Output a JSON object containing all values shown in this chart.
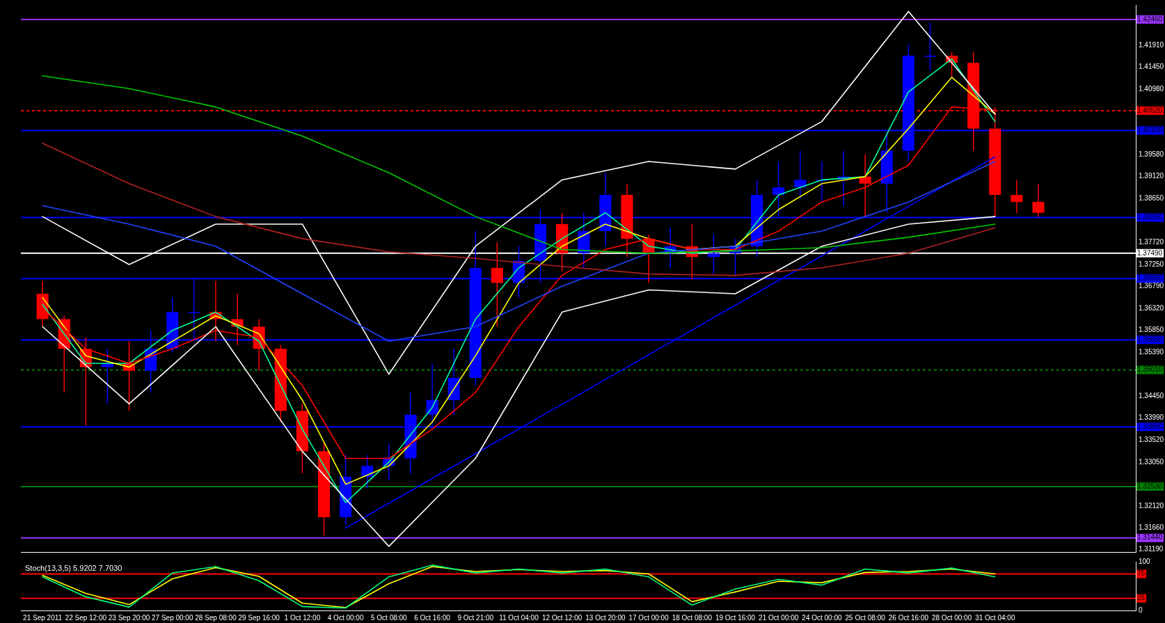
{
  "chart_data": [
    {
      "type": "candlestick",
      "tick_labels": "y",
      "ylim": [
        1.3114,
        1.4277
      ],
      "categories": [
        "21 Sep 2011",
        null,
        "22 Sep 12:00",
        null,
        "23 Sep 20:00",
        null,
        "27 Sep 00:00",
        null,
        "28 Sep 08:00",
        null,
        "29 Sep 16:00",
        null,
        "1 Oct 12:00",
        null,
        "4 Oct 00:00",
        null,
        "5 Oct 08:00",
        null,
        "6 Oct 16:00",
        null,
        "9 Oct 21:00",
        null,
        "11 Oct 04:00",
        null,
        "12 Oct 12:00",
        null,
        "13 Oct 20:00",
        null,
        "17 Oct 00:00",
        null,
        "18 Oct 08:00",
        null,
        "19 Oct 16:00",
        null,
        "21 Oct 00:00",
        null,
        "24 Oct 00:00",
        null,
        "25 Oct 08:00",
        null,
        "26 Oct 16:00",
        null,
        "28 Oct 00:00",
        null,
        "31 Oct 04:00",
        null,
        null,
        null,
        null,
        null,
        null
      ],
      "yticks": [
        {
          "value": 1.4191,
          "label": "1.41910"
        },
        {
          "value": 1.4145,
          "label": "1.41450"
        },
        {
          "value": 1.4098,
          "label": "1.40980"
        },
        {
          "value": 1.3958,
          "label": "1.39580"
        },
        {
          "value": 1.3912,
          "label": "1.39120"
        },
        {
          "value": 1.3865,
          "label": "1.38650"
        },
        {
          "value": 1.3772,
          "label": "1.37720"
        },
        {
          "value": 1.3725,
          "label": "1.37250"
        },
        {
          "value": 1.3679,
          "label": "1.36790"
        },
        {
          "value": 1.3632,
          "label": "1.36320"
        },
        {
          "value": 1.3585,
          "label": "1.35850"
        },
        {
          "value": 1.3539,
          "label": "1.35390"
        },
        {
          "value": 1.3445,
          "label": "1.34450"
        },
        {
          "value": 1.3399,
          "label": "1.33990"
        },
        {
          "value": 1.3352,
          "label": "1.33520"
        },
        {
          "value": 1.3305,
          "label": "1.33050"
        },
        {
          "value": 1.3212,
          "label": "1.32120"
        },
        {
          "value": 1.3166,
          "label": "1.31660"
        },
        {
          "value": 1.3119,
          "label": "1.31190"
        }
      ],
      "ohlc": [
        [
          1.3663,
          1.369,
          1.3593,
          1.3609
        ],
        [
          1.3609,
          1.3616,
          1.3453,
          1.3546
        ],
        [
          1.3546,
          1.357,
          1.3383,
          1.3507
        ],
        [
          1.3507,
          1.3546,
          1.3429,
          1.3515
        ],
        [
          1.3515,
          1.3562,
          1.3414,
          1.3499
        ],
        [
          1.3499,
          1.3585,
          1.3453,
          1.3546
        ],
        [
          1.3546,
          1.3655,
          1.3538,
          1.3624
        ],
        [
          1.3624,
          1.3694,
          1.3562,
          1.3624
        ],
        [
          1.3624,
          1.369,
          1.3562,
          1.3609
        ],
        [
          1.3609,
          1.3663,
          1.3554,
          1.3593
        ],
        [
          1.3593,
          1.3609,
          1.3499,
          1.3546
        ],
        [
          1.3546,
          1.3554,
          1.339,
          1.3414
        ],
        [
          1.3414,
          1.3429,
          1.3281,
          1.3328
        ],
        [
          1.3328,
          1.3344,
          1.3149,
          1.3188
        ],
        [
          1.3188,
          1.332,
          1.3172,
          1.3274
        ],
        [
          1.3274,
          1.332,
          1.325,
          1.3297
        ],
        [
          1.3297,
          1.3344,
          1.3266,
          1.3313
        ],
        [
          1.3313,
          1.3453,
          1.3281,
          1.3406
        ],
        [
          1.3406,
          1.3515,
          1.3375,
          1.3437
        ],
        [
          1.3437,
          1.3546,
          1.3406,
          1.3484
        ],
        [
          1.3484,
          1.3796,
          1.3468,
          1.3718
        ],
        [
          1.3718,
          1.3772,
          1.3593,
          1.3686
        ],
        [
          1.3686,
          1.3764,
          1.3655,
          1.3733
        ],
        [
          1.3733,
          1.3842,
          1.3686,
          1.3811
        ],
        [
          1.3811,
          1.3835,
          1.371,
          1.3749
        ],
        [
          1.3749,
          1.3835,
          1.3718,
          1.3796
        ],
        [
          1.3796,
          1.392,
          1.3764,
          1.3873
        ],
        [
          1.3873,
          1.3897,
          1.3741,
          1.378
        ],
        [
          1.378,
          1.3788,
          1.3686,
          1.3749
        ],
        [
          1.3749,
          1.3803,
          1.3718,
          1.3764
        ],
        [
          1.3764,
          1.3811,
          1.3694,
          1.3741
        ],
        [
          1.3741,
          1.3788,
          1.3702,
          1.3749
        ],
        [
          1.3749,
          1.378,
          1.3702,
          1.3764
        ],
        [
          1.3764,
          1.3905,
          1.3741,
          1.3873
        ],
        [
          1.3873,
          1.3944,
          1.3827,
          1.3889
        ],
        [
          1.3889,
          1.3967,
          1.3866,
          1.3905
        ],
        [
          1.3905,
          1.3944,
          1.3858,
          1.3905
        ],
        [
          1.3905,
          1.3967,
          1.385,
          1.3912
        ],
        [
          1.3912,
          1.3959,
          1.3827,
          1.3897
        ],
        [
          1.3897,
          1.4006,
          1.3835,
          1.3967
        ],
        [
          1.3967,
          1.4193,
          1.3944,
          1.4169
        ],
        [
          1.4169,
          1.424,
          1.4138,
          1.4169
        ],
        [
          1.4169,
          1.4177,
          1.4123,
          1.4154
        ],
        [
          1.4154,
          1.4177,
          1.3967,
          1.4014
        ],
        [
          1.4014,
          1.406,
          1.3827,
          1.3873
        ],
        [
          1.3873,
          1.3905,
          1.3835,
          1.3858
        ],
        [
          1.3858,
          1.3897,
          1.3827,
          1.3835
        ],
        null,
        null,
        null,
        null
      ],
      "colors": [
        "#ff0000",
        "#ff0000",
        "#ff0000",
        "#0000ff",
        "#ff0000",
        "#0000ff",
        "#0000ff",
        "#0000ff",
        "#ff0000",
        "#ff0000",
        "#ff0000",
        "#ff0000",
        "#ff0000",
        "#ff0000",
        "#0000ff",
        "#0000ff",
        "#0000ff",
        "#0000ff",
        "#0000ff",
        "#0000ff",
        "#0000ff",
        "#ff0000",
        "#0000ff",
        "#0000ff",
        "#ff0000",
        "#0000ff",
        "#0000ff",
        "#ff0000",
        "#ff0000",
        "#0000ff",
        "#ff0000",
        "#0000ff",
        "#0000ff",
        "#0000ff",
        "#0000ff",
        "#0000ff",
        "#0000ff",
        "#0000ff",
        "#ff0000",
        "#0000ff",
        "#0000ff",
        "#0000ff",
        "#ff0000",
        "#ff0000",
        "#ff0000",
        "#ff0000",
        "#ff0000",
        null,
        null,
        null,
        null
      ],
      "series": [
        {
          "type": "line",
          "color": "#00cc00",
          "x": [
            "21 Sep 2011",
            "23 Sep 20:00",
            "28 Sep 08:00",
            "1 Oct 12:00",
            "5 Oct 08:00",
            "9 Oct 21:00",
            "12 Oct 12:00",
            "17 Oct 00:00",
            "19 Oct 16:00",
            "24 Oct 00:00",
            "26 Oct 16:00",
            "31 Oct 04:00"
          ],
          "values": [
            1.4126,
            1.4099,
            1.406,
            1.3998,
            1.392,
            1.3827,
            1.3757,
            1.3749,
            1.3754,
            1.3761,
            1.3783,
            1.3811
          ]
        },
        {
          "type": "line",
          "color": "#b22222",
          "x": [
            "21 Sep 2011",
            "23 Sep 20:00",
            "28 Sep 08:00",
            "1 Oct 12:00",
            "5 Oct 08:00",
            "9 Oct 21:00",
            "12 Oct 12:00",
            "17 Oct 00:00",
            "19 Oct 16:00",
            "24 Oct 00:00",
            "26 Oct 16:00",
            "31 Oct 04:00"
          ],
          "values": [
            1.3983,
            1.3897,
            1.3827,
            1.378,
            1.3752,
            1.3738,
            1.3721,
            1.3705,
            1.3702,
            1.3718,
            1.3749,
            1.3803
          ]
        },
        {
          "type": "line",
          "color": "#2244ff",
          "x": [
            "21 Sep 2011",
            "23 Sep 20:00",
            "28 Sep 08:00",
            "1 Oct 12:00",
            "5 Oct 08:00",
            "9 Oct 21:00",
            "12 Oct 12:00",
            "17 Oct 00:00",
            "19 Oct 16:00",
            "24 Oct 00:00",
            "26 Oct 16:00",
            "31 Oct 04:00"
          ],
          "values": [
            1.385,
            1.3811,
            1.3764,
            1.3663,
            1.3562,
            1.3593,
            1.3679,
            1.3749,
            1.3764,
            1.3796,
            1.3858,
            1.3944
          ]
        },
        {
          "type": "line",
          "color": "#ffffff",
          "x": [
            "21 Sep 2011",
            "23 Sep 20:00",
            "28 Sep 08:00",
            "1 Oct 12:00",
            "5 Oct 08:00",
            "9 Oct 21:00",
            "12 Oct 12:00",
            "17 Oct 00:00",
            "19 Oct 16:00",
            "24 Oct 00:00",
            "26 Oct 16:00",
            "31 Oct 04:00"
          ],
          "values": [
            1.3827,
            1.3725,
            1.3811,
            1.3811,
            1.3492,
            1.3764,
            1.3905,
            1.3944,
            1.3928,
            1.4029,
            1.4263,
            1.4045
          ]
        },
        {
          "type": "line",
          "color": "#ffffff",
          "x": [
            "21 Sep 2011",
            "23 Sep 20:00",
            "28 Sep 08:00",
            "1 Oct 12:00",
            "5 Oct 08:00",
            "9 Oct 21:00",
            "12 Oct 12:00",
            "17 Oct 00:00",
            "19 Oct 16:00",
            "24 Oct 00:00",
            "26 Oct 16:00",
            "31 Oct 04:00"
          ],
          "values": [
            1.3593,
            1.3429,
            1.3593,
            1.3328,
            1.3126,
            1.3313,
            1.3624,
            1.3671,
            1.3663,
            1.3764,
            1.3811,
            1.3827
          ]
        },
        {
          "type": "line",
          "color": "#ff0000",
          "x": [
            "21 Sep 2011",
            "22 Sep 12:00",
            "23 Sep 20:00",
            "27 Sep 00:00",
            "28 Sep 08:00",
            "29 Sep 16:00",
            "1 Oct 12:00",
            "4 Oct 00:00",
            "5 Oct 08:00",
            "6 Oct 16:00",
            "9 Oct 21:00",
            "11 Oct 04:00",
            "12 Oct 12:00",
            "13 Oct 20:00",
            "17 Oct 00:00",
            "18 Oct 08:00",
            "19 Oct 16:00",
            "21 Oct 00:00",
            "24 Oct 00:00",
            "25 Oct 08:00",
            "26 Oct 16:00",
            "28 Oct 00:00",
            "31 Oct 04:00"
          ],
          "values": [
            1.3632,
            1.3546,
            1.3515,
            1.3546,
            1.3585,
            1.357,
            1.3468,
            1.3313,
            1.3313,
            1.3375,
            1.3453,
            1.3593,
            1.3702,
            1.3757,
            1.378,
            1.3757,
            1.3757,
            1.3796,
            1.3858,
            1.3889,
            1.3936,
            1.406,
            1.4053
          ]
        },
        {
          "type": "line",
          "color": "#ffff00",
          "x": [
            "21 Sep 2011",
            "22 Sep 12:00",
            "23 Sep 20:00",
            "27 Sep 00:00",
            "28 Sep 08:00",
            "29 Sep 16:00",
            "1 Oct 12:00",
            "4 Oct 00:00",
            "5 Oct 08:00",
            "6 Oct 16:00",
            "9 Oct 21:00",
            "11 Oct 04:00",
            "12 Oct 12:00",
            "13 Oct 20:00",
            "17 Oct 00:00",
            "18 Oct 08:00",
            "19 Oct 16:00",
            "21 Oct 00:00",
            "24 Oct 00:00",
            "25 Oct 08:00",
            "26 Oct 16:00",
            "28 Oct 00:00",
            "31 Oct 04:00"
          ],
          "values": [
            1.3655,
            1.3531,
            1.3507,
            1.3562,
            1.3616,
            1.3578,
            1.3437,
            1.3258,
            1.3297,
            1.339,
            1.3531,
            1.3686,
            1.3764,
            1.3811,
            1.378,
            1.3757,
            1.3764,
            1.3842,
            1.3897,
            1.3912,
            1.4014,
            1.4123,
            1.4045
          ]
        },
        {
          "type": "line",
          "color": "#00ff99",
          "x": [
            "21 Sep 2011",
            "22 Sep 12:00",
            "23 Sep 20:00",
            "27 Sep 00:00",
            "28 Sep 08:00",
            "29 Sep 16:00",
            "1 Oct 12:00",
            "4 Oct 00:00",
            "5 Oct 08:00",
            "6 Oct 16:00",
            "9 Oct 21:00",
            "11 Oct 04:00",
            "12 Oct 12:00",
            "13 Oct 20:00",
            "17 Oct 00:00",
            "18 Oct 08:00",
            "19 Oct 16:00",
            "21 Oct 00:00",
            "24 Oct 00:00",
            "25 Oct 08:00",
            "26 Oct 16:00",
            "28 Oct 00:00",
            "31 Oct 04:00"
          ],
          "values": [
            1.364,
            1.3515,
            1.3515,
            1.3585,
            1.3624,
            1.3562,
            1.3375,
            1.3219,
            1.3305,
            1.3421,
            1.3609,
            1.3718,
            1.378,
            1.3835,
            1.3764,
            1.3749,
            1.3757,
            1.3873,
            1.3905,
            1.3912,
            1.4092,
            1.4162,
            1.4029
          ]
        },
        {
          "type": "line",
          "color": "#0000ff",
          "x": [
            "4 Oct 00:00",
            "31 Oct 04:00"
          ],
          "values": [
            1.3165,
            1.3954
          ]
        }
      ],
      "ref_lines": [
        {
          "axis": "y",
          "value": 1.4246,
          "label": "1.42460",
          "color": "#9933ff"
        },
        {
          "axis": "y",
          "value": 1.4052,
          "label": "1.40520",
          "color": "#ff0000",
          "line_style": "dashed"
        },
        {
          "axis": "y",
          "value": 1.401,
          "label": "1.40100",
          "color": "#0000ff"
        },
        {
          "axis": "y",
          "value": 1.3825,
          "label": "1.38250",
          "color": "#0000ff"
        },
        {
          "axis": "y",
          "value": 1.3749,
          "label": "1.37490",
          "color": "#ffffff"
        },
        {
          "axis": "y",
          "value": 1.3695,
          "label": "1.36950",
          "color": "#0000ff"
        },
        {
          "axis": "y",
          "value": 1.3565,
          "label": "1.35650",
          "color": "#0000ff"
        },
        {
          "axis": "y",
          "value": 1.3501,
          "label": "1.35010",
          "color": "#008000",
          "line_style": "dashed"
        },
        {
          "axis": "y",
          "value": 1.338,
          "label": "1.33800",
          "color": "#0000ff"
        },
        {
          "axis": "y",
          "value": 1.3253,
          "label": "1.32530",
          "color": "#008000"
        },
        {
          "axis": "y",
          "value": 1.3144,
          "label": "1.31440",
          "color": "#9933ff"
        }
      ]
    },
    {
      "type": "line",
      "title": "Stoch(13,3,5) 5.9202 7.7030",
      "ylim": [
        0,
        100
      ],
      "yticks": [
        0,
        100
      ],
      "categories": [
        "21 Sep 2011",
        null,
        "22 Sep 12:00",
        null,
        "23 Sep 20:00",
        null,
        "27 Sep 00:00",
        null,
        "28 Sep 08:00",
        null,
        "29 Sep 16:00",
        null,
        "1 Oct 12:00",
        null,
        "4 Oct 00:00",
        null,
        "5 Oct 08:00",
        null,
        "6 Oct 16:00",
        null,
        "9 Oct 21:00",
        null,
        "11 Oct 04:00",
        null,
        "12 Oct 12:00",
        null,
        "13 Oct 20:00",
        null,
        "17 Oct 00:00",
        null,
        "18 Oct 08:00",
        null,
        "19 Oct 16:00",
        null,
        "21 Oct 00:00",
        null,
        "24 Oct 00:00",
        null,
        "25 Oct 08:00",
        null,
        "26 Oct 16:00",
        null,
        "28 Oct 00:00",
        null,
        "31 Oct 04:00",
        null,
        null,
        null,
        null,
        null,
        null
      ],
      "series": [
        {
          "color": "#00ff7f",
          "x": [
            "21 Sep 2011",
            "22 Sep 12:00",
            "23 Sep 20:00",
            "27 Sep 00:00",
            "28 Sep 08:00",
            "29 Sep 16:00",
            "1 Oct 12:00",
            "4 Oct 00:00",
            "5 Oct 08:00",
            "6 Oct 16:00",
            "9 Oct 21:00",
            "11 Oct 04:00",
            "12 Oct 12:00",
            "13 Oct 20:00",
            "17 Oct 00:00",
            "18 Oct 08:00",
            "19 Oct 16:00",
            "21 Oct 00:00",
            "24 Oct 00:00",
            "25 Oct 08:00",
            "26 Oct 16:00",
            "28 Oct 00:00",
            "31 Oct 04:00"
          ],
          "values": [
            69,
            28,
            7,
            77,
            90,
            61,
            8,
            5,
            69,
            93,
            77,
            85,
            77,
            85,
            69,
            11,
            44,
            64,
            52,
            85,
            77,
            87,
            69
          ]
        },
        {
          "color": "#ffff00",
          "x": [
            "21 Sep 2011",
            "22 Sep 12:00",
            "23 Sep 20:00",
            "27 Sep 00:00",
            "28 Sep 08:00",
            "29 Sep 16:00",
            "1 Oct 12:00",
            "4 Oct 00:00",
            "5 Oct 08:00",
            "6 Oct 16:00",
            "9 Oct 21:00",
            "11 Oct 04:00",
            "12 Oct 12:00",
            "13 Oct 20:00",
            "17 Oct 00:00",
            "18 Oct 08:00",
            "19 Oct 16:00",
            "21 Oct 00:00",
            "24 Oct 00:00",
            "25 Oct 08:00",
            "26 Oct 16:00",
            "28 Oct 00:00",
            "31 Oct 04:00"
          ],
          "values": [
            72,
            35,
            12,
            65,
            88,
            70,
            15,
            6,
            55,
            90,
            80,
            84,
            80,
            82,
            75,
            18,
            38,
            60,
            57,
            78,
            80,
            85,
            75
          ]
        }
      ],
      "ref_lines": [
        {
          "axis": "y",
          "value": 75,
          "label": "75",
          "color": "#ff0000"
        },
        {
          "axis": "y",
          "value": 25,
          "label": "25",
          "color": "#ff0000"
        }
      ]
    }
  ]
}
